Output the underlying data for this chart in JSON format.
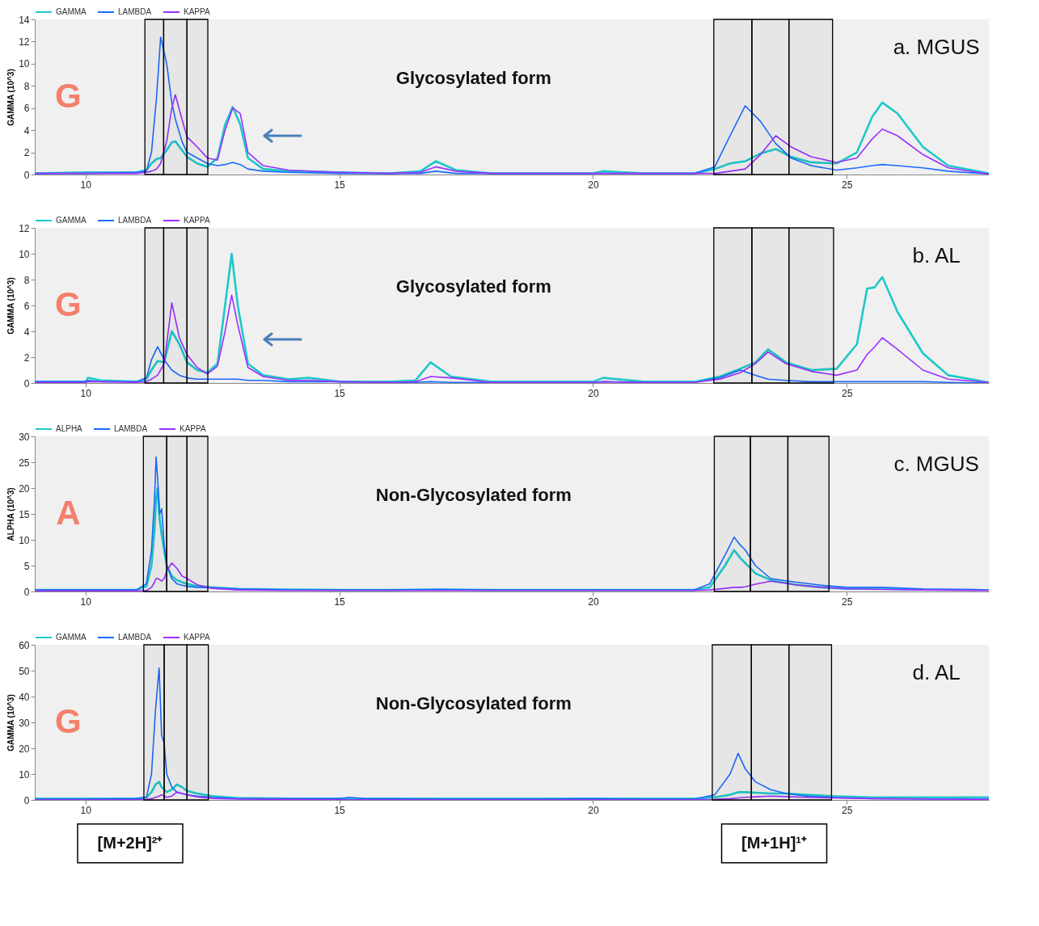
{
  "chart_data": [
    {
      "type": "line",
      "ylabel": "GAMMA (10^3)",
      "legend": "top left",
      "xlim": [
        9,
        27.8
      ],
      "xticks": [
        10,
        15,
        20,
        25
      ],
      "ylim": [
        0,
        14
      ],
      "yticks": [
        0,
        2,
        4,
        6,
        8,
        10,
        12,
        14
      ],
      "annotations": [
        "G",
        "Glycosylated form",
        "a. MGUS"
      ],
      "bands": [
        {
          "axis": "x",
          "from": 11.17,
          "to": 11.54,
          "color": "#000000"
        },
        {
          "axis": "x",
          "from": 11.54,
          "to": 12.0,
          "color": "#000000"
        },
        {
          "axis": "x",
          "from": 12.0,
          "to": 12.41,
          "color": "#000000"
        },
        {
          "axis": "x",
          "from": 22.38,
          "to": 23.13,
          "color": "#000000"
        },
        {
          "axis": "x",
          "from": 23.13,
          "to": 23.86,
          "color": "#000000"
        },
        {
          "axis": "x",
          "from": 23.86,
          "to": 24.72,
          "color": "#000000"
        }
      ],
      "x": [
        9,
        10,
        11,
        11.2,
        11.3,
        11.4,
        11.48,
        11.6,
        11.7,
        11.77,
        11.9,
        12.0,
        12.2,
        12.4,
        12.6,
        12.75,
        12.9,
        13.05,
        13.2,
        13.5,
        14,
        15,
        16,
        16.6,
        16.9,
        17.3,
        18,
        20,
        20.2,
        21,
        22,
        22.4,
        22.7,
        23.0,
        23.3,
        23.6,
        23.9,
        24.3,
        24.8,
        25.2,
        25.5,
        25.7,
        26.0,
        26.5,
        27,
        27.8
      ],
      "series": [
        {
          "name": "GAMMA",
          "color": "#1fc8c8",
          "values": [
            0.1,
            0.2,
            0.2,
            0.4,
            1.0,
            1.4,
            1.5,
            2.2,
            2.9,
            3.0,
            2.2,
            1.6,
            1.0,
            0.7,
            1.5,
            4.5,
            6.1,
            4.5,
            1.5,
            0.5,
            0.3,
            0.2,
            0.1,
            0.3,
            1.2,
            0.4,
            0.1,
            0.1,
            0.3,
            0.1,
            0.1,
            0.5,
            1.0,
            1.2,
            1.9,
            2.3,
            1.6,
            1.1,
            1.0,
            2.0,
            5.2,
            6.5,
            5.5,
            2.5,
            0.8,
            0.1
          ]
        },
        {
          "name": "LAMBDA",
          "color": "#1a6bff",
          "values": [
            0.1,
            0.1,
            0.2,
            0.3,
            2.0,
            7,
            12.4,
            10,
            6.5,
            5,
            3,
            2,
            1.5,
            1.0,
            0.8,
            0.9,
            1.1,
            0.9,
            0.5,
            0.3,
            0.2,
            0.1,
            0.1,
            0.1,
            0.3,
            0.1,
            0.1,
            0.1,
            0.1,
            0.1,
            0.1,
            0.7,
            3.5,
            6.2,
            4.8,
            2.8,
            1.5,
            0.8,
            0.4,
            0.6,
            0.8,
            0.9,
            0.8,
            0.6,
            0.3,
            0.05
          ]
        },
        {
          "name": "KAPPA",
          "color": "#9b30ff",
          "values": [
            0.1,
            0.1,
            0.1,
            0.2,
            0.3,
            0.5,
            1.0,
            3,
            6,
            7.2,
            5,
            3.4,
            2.5,
            1.5,
            1.3,
            4,
            6.0,
            5.5,
            2,
            0.8,
            0.4,
            0.2,
            0.1,
            0.2,
            0.7,
            0.3,
            0.1,
            0.1,
            0.1,
            0.1,
            0.1,
            0.1,
            0.3,
            0.5,
            1.8,
            3.5,
            2.5,
            1.6,
            1.1,
            1.5,
            3.2,
            4.1,
            3.5,
            1.8,
            0.6,
            0.05
          ]
        }
      ]
    },
    {
      "type": "line",
      "ylabel": "GAMMA (10^3)",
      "legend": "top left",
      "xlim": [
        9,
        27.8
      ],
      "xticks": [
        10,
        15,
        20,
        25
      ],
      "ylim": [
        0,
        12
      ],
      "yticks": [
        0,
        2,
        4,
        6,
        8,
        10,
        12
      ],
      "annotations": [
        "G",
        "Glycosylated form",
        "b. AL"
      ],
      "bands": [
        {
          "axis": "x",
          "from": 11.17,
          "to": 11.54,
          "color": "#000000"
        },
        {
          "axis": "x",
          "from": 11.54,
          "to": 12.0,
          "color": "#000000"
        },
        {
          "axis": "x",
          "from": 12.0,
          "to": 12.41,
          "color": "#000000"
        },
        {
          "axis": "x",
          "from": 22.38,
          "to": 23.13,
          "color": "#000000"
        },
        {
          "axis": "x",
          "from": 23.13,
          "to": 23.86,
          "color": "#000000"
        },
        {
          "axis": "x",
          "from": 23.86,
          "to": 24.74,
          "color": "#000000"
        }
      ],
      "x": [
        9,
        10,
        10.05,
        10.3,
        11,
        11.2,
        11.3,
        11.42,
        11.55,
        11.7,
        11.85,
        12.0,
        12.2,
        12.4,
        12.6,
        12.75,
        12.88,
        13.0,
        13.2,
        13.5,
        14,
        14.4,
        15,
        16,
        16.5,
        16.8,
        17.2,
        18,
        20,
        20.2,
        21,
        22,
        22.5,
        22.9,
        23.2,
        23.45,
        23.8,
        24.3,
        24.8,
        25.2,
        25.4,
        25.55,
        25.7,
        26.0,
        26.5,
        27,
        27.8
      ],
      "series": [
        {
          "name": "GAMMA",
          "color": "#1fc8c8",
          "values": [
            0.1,
            0.1,
            0.4,
            0.2,
            0.1,
            0.3,
            1.0,
            1.7,
            1.6,
            4.0,
            3.0,
            1.6,
            1.0,
            0.8,
            1.5,
            6,
            10,
            6,
            1.5,
            0.6,
            0.3,
            0.4,
            0.1,
            0.1,
            0.2,
            1.6,
            0.5,
            0.1,
            0.1,
            0.4,
            0.1,
            0.1,
            0.5,
            1.1,
            1.6,
            2.6,
            1.6,
            1.0,
            1.1,
            3.0,
            7.3,
            7.4,
            8.2,
            5.5,
            2.3,
            0.6,
            0.05
          ]
        },
        {
          "name": "LAMBDA",
          "color": "#1a6bff",
          "values": [
            0.1,
            0.1,
            0.2,
            0.1,
            0.1,
            0.4,
            1.8,
            2.8,
            1.8,
            1.0,
            0.6,
            0.4,
            0.3,
            0.3,
            0.3,
            0.3,
            0.3,
            0.3,
            0.2,
            0.2,
            0.1,
            0.1,
            0.1,
            0.05,
            0.05,
            0.1,
            0.05,
            0.05,
            0.05,
            0.1,
            0.05,
            0.05,
            0.4,
            1.0,
            0.6,
            0.3,
            0.2,
            0.1,
            0.1,
            0.1,
            0.1,
            0.1,
            0.1,
            0.1,
            0.1,
            0.05,
            0
          ]
        },
        {
          "name": "KAPPA",
          "color": "#9b30ff",
          "values": [
            0.05,
            0.05,
            0.1,
            0.1,
            0.05,
            0.1,
            0.3,
            0.6,
            1.5,
            6.2,
            3.5,
            2.2,
            1.2,
            0.7,
            1.3,
            4,
            6.8,
            4.5,
            1.2,
            0.5,
            0.2,
            0.2,
            0.1,
            0.05,
            0.1,
            0.5,
            0.4,
            0.05,
            0.05,
            0.1,
            0.05,
            0.05,
            0.3,
            0.8,
            1.5,
            2.4,
            1.5,
            0.9,
            0.6,
            1.0,
            2.2,
            2.8,
            3.5,
            2.6,
            1.0,
            0.3,
            0.05
          ]
        }
      ]
    },
    {
      "type": "line",
      "ylabel": "ALPHA (10^3)",
      "legend": "top left",
      "xlim": [
        9,
        27.8
      ],
      "xticks": [
        10,
        15,
        20,
        25
      ],
      "ylim": [
        0,
        30
      ],
      "yticks": [
        0,
        5,
        10,
        15,
        20,
        25,
        30
      ],
      "annotations": [
        "A",
        "Non-Glycosylated form",
        "c. MGUS"
      ],
      "bands": [
        {
          "axis": "x",
          "from": 11.14,
          "to": 11.6,
          "color": "#000000"
        },
        {
          "axis": "x",
          "from": 11.6,
          "to": 12.0,
          "color": "#000000"
        },
        {
          "axis": "x",
          "from": 12.0,
          "to": 12.41,
          "color": "#000000"
        },
        {
          "axis": "x",
          "from": 22.39,
          "to": 23.1,
          "color": "#000000"
        },
        {
          "axis": "x",
          "from": 23.1,
          "to": 23.84,
          "color": "#000000"
        },
        {
          "axis": "x",
          "from": 23.84,
          "to": 24.65,
          "color": "#000000"
        }
      ],
      "x": [
        9,
        10,
        11,
        11.2,
        11.3,
        11.36,
        11.39,
        11.42,
        11.46,
        11.5,
        11.55,
        11.6,
        11.7,
        11.8,
        11.9,
        12.0,
        12.2,
        12.5,
        13,
        14,
        15,
        16,
        17,
        18,
        19,
        20,
        21,
        22,
        22.3,
        22.6,
        22.78,
        22.9,
        23.0,
        23.2,
        23.5,
        24,
        24.5,
        25,
        25.7,
        26.5,
        27.5,
        27.8
      ],
      "series": [
        {
          "name": "ALPHA",
          "color": "#1fc8c8",
          "values": [
            0.3,
            0.3,
            0.3,
            1,
            5,
            12,
            18,
            20,
            14,
            11,
            8,
            5,
            3,
            2.2,
            1.8,
            1.5,
            1.0,
            0.8,
            0.5,
            0.4,
            0.3,
            0.3,
            0.4,
            0.3,
            0.3,
            0.3,
            0.3,
            0.3,
            0.8,
            5,
            8,
            6.5,
            5.5,
            3.5,
            2.2,
            1.3,
            0.8,
            0.5,
            0.5,
            0.4,
            null,
            null
          ]
        },
        {
          "name": "LAMBDA",
          "color": "#1a6bff",
          "values": [
            0.3,
            0.3,
            0.3,
            1.5,
            8,
            18,
            26,
            22,
            15,
            16,
            9,
            5,
            2.5,
            1.5,
            1.2,
            1.0,
            0.8,
            0.7,
            0.5,
            0.3,
            0.3,
            0.3,
            0.4,
            0.3,
            0.3,
            0.3,
            0.3,
            0.3,
            1.5,
            7,
            10.5,
            9,
            8,
            5,
            2.5,
            1.8,
            1.2,
            0.8,
            0.8,
            0.5,
            0.4,
            0.3
          ]
        },
        {
          "name": "KAPPA",
          "color": "#9b30ff",
          "values": [
            0.1,
            0.1,
            0.1,
            0.2,
            0.8,
            1.8,
            2.5,
            2.5,
            2.3,
            2.0,
            2.5,
            4,
            5.5,
            4.5,
            3,
            2.5,
            1.3,
            0.6,
            0.3,
            0.2,
            0.2,
            0.2,
            0.2,
            0.2,
            0.2,
            0.2,
            0.2,
            0.2,
            0.3,
            0.6,
            0.8,
            0.8,
            0.9,
            1.4,
            2.0,
            1.3,
            0.8,
            0.5,
            0.4,
            0.3,
            0.2,
            0.2
          ]
        }
      ]
    },
    {
      "type": "line",
      "ylabel": "GAMMA (10^3)",
      "legend": "top left",
      "xlim": [
        9,
        27.8
      ],
      "xticks": [
        10,
        15,
        20,
        25
      ],
      "ylim": [
        0,
        60
      ],
      "yticks": [
        0,
        10,
        20,
        30,
        40,
        50,
        60
      ],
      "annotations": [
        "G",
        "Non-Glycosylated form",
        "d. AL",
        "[M+2H]²⁺",
        "[M+1H]¹⁺"
      ],
      "bands": [
        {
          "axis": "x",
          "from": 11.15,
          "to": 11.55,
          "color": "#000000"
        },
        {
          "axis": "x",
          "from": 11.55,
          "to": 12.0,
          "color": "#000000"
        },
        {
          "axis": "x",
          "from": 12.0,
          "to": 12.42,
          "color": "#000000"
        },
        {
          "axis": "x",
          "from": 22.35,
          "to": 23.12,
          "color": "#000000"
        },
        {
          "axis": "x",
          "from": 23.12,
          "to": 23.86,
          "color": "#000000"
        },
        {
          "axis": "x",
          "from": 23.86,
          "to": 24.7,
          "color": "#000000"
        }
      ],
      "x": [
        9,
        10,
        11,
        11.2,
        11.3,
        11.38,
        11.45,
        11.5,
        11.55,
        11.6,
        11.7,
        11.8,
        11.9,
        12.0,
        12.2,
        12.5,
        13,
        14,
        15,
        15.2,
        15.5,
        17,
        19,
        20,
        21,
        22,
        22.4,
        22.7,
        22.86,
        23.0,
        23.2,
        23.5,
        23.8,
        24.2,
        24.7,
        25.5,
        27,
        27.8
      ],
      "series": [
        {
          "name": "GAMMA",
          "color": "#1fc8c8",
          "values": [
            0.5,
            0.5,
            0.5,
            1,
            3,
            6,
            7,
            5,
            4,
            3,
            4,
            6,
            5,
            3.5,
            2.5,
            1.5,
            0.8,
            0.5,
            0.5,
            0.5,
            0.5,
            0.5,
            0.5,
            0.5,
            0.5,
            0.5,
            1,
            2,
            3,
            3,
            2.8,
            2.5,
            2.5,
            2,
            1.5,
            1,
            1,
            1
          ]
        },
        {
          "name": "LAMBDA",
          "color": "#1a6bff",
          "values": [
            0.3,
            0.3,
            0.5,
            1,
            10,
            35,
            51,
            25,
            22,
            10,
            5,
            3,
            2.5,
            2,
            1.5,
            1,
            0.5,
            0.5,
            0.5,
            1.0,
            0.5,
            0.3,
            0.3,
            0.5,
            0.3,
            0.3,
            2,
            10,
            18,
            12,
            7,
            4,
            2.5,
            1.5,
            1,
            0.5,
            0.3,
            0.3
          ]
        },
        {
          "name": "KAPPA",
          "color": "#9b30ff",
          "values": [
            0.1,
            0.1,
            0.1,
            0.2,
            0.5,
            1,
            1.5,
            2,
            1.5,
            1,
            1.5,
            3,
            2.5,
            2,
            1.2,
            0.6,
            0.3,
            0.2,
            0.1,
            0.1,
            0.1,
            0.1,
            0.1,
            0.1,
            0.1,
            0.1,
            0.2,
            0.5,
            0.8,
            1.0,
            1.2,
            1.5,
            1.3,
            1.0,
            0.8,
            0.5,
            0.3,
            0.2
          ]
        }
      ]
    }
  ]
}
